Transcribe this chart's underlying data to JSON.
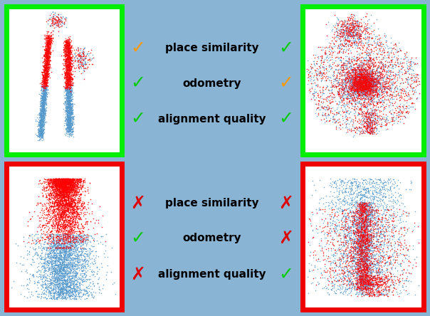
{
  "background_color": "#8ab4d4",
  "panel_bg": "#ffffff",
  "top_border_color": "#00ee00",
  "bottom_border_color": "#ee0000",
  "border_width": 5,
  "labels": [
    "place similarity",
    "odometry",
    "alignment quality"
  ],
  "top_left_symbols": [
    "✓",
    "✓",
    "✓"
  ],
  "top_left_colors": [
    "#ff9900",
    "#00cc00",
    "#00cc00"
  ],
  "top_right_symbols": [
    "✓",
    "✓",
    "✓"
  ],
  "top_right_colors": [
    "#00cc00",
    "#ff9900",
    "#00cc00"
  ],
  "bot_left_symbols": [
    "✗",
    "✓",
    "✗"
  ],
  "bot_left_colors": [
    "#dd0000",
    "#00cc00",
    "#dd0000"
  ],
  "bot_right_symbols": [
    "✗",
    "✗",
    "✓"
  ],
  "bot_right_colors": [
    "#dd0000",
    "#dd0000",
    "#00cc00"
  ],
  "label_fontsize": 11,
  "symbol_fontsize": 18,
  "fig_width": 6.04,
  "fig_height": 4.44
}
